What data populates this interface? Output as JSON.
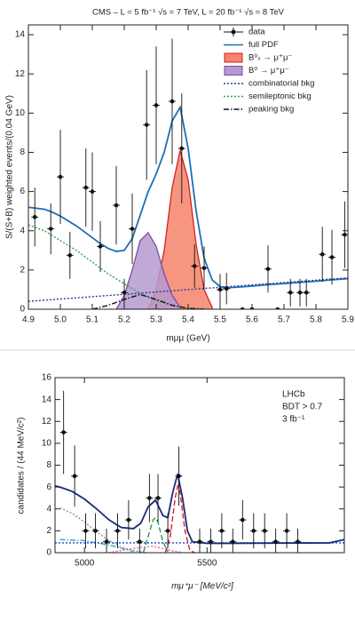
{
  "chart_data": [
    {
      "type": "line",
      "title": "CMS – L = 5 fb⁻¹ √s = 7 TeV, L = 20 fb⁻¹ √s = 8 TeV",
      "x_label": "mμμ (GeV)",
      "y_label": "S/(S+B) weighted events/(0.04 GeV)",
      "xlim": [
        4.9,
        5.9
      ],
      "xticks": [
        4.9,
        {
          "value": 5,
          "label": "5.0"
        },
        5.1,
        5.2,
        5.3,
        5.4,
        5.5,
        5.6,
        5.7,
        5.8,
        5.9
      ],
      "ylim": [
        0,
        14.5
      ],
      "yticks": [
        0,
        2,
        4,
        6,
        8,
        10,
        12,
        14
      ],
      "legend": "upper right",
      "series": [
        {
          "name": "data",
          "style": "points",
          "color": "#111111",
          "x": [
            4.92,
            4.97,
            5.0,
            5.03,
            5.08,
            5.1,
            5.125,
            5.175,
            5.2,
            5.225,
            5.27,
            5.3,
            5.35,
            5.38,
            5.42,
            5.45,
            5.5,
            5.52,
            5.57,
            5.6,
            5.65,
            5.68,
            5.72,
            5.75,
            5.77,
            5.82,
            5.85,
            5.89
          ],
          "values": [
            4.7,
            4.1,
            6.75,
            2.75,
            6.2,
            6.0,
            3.2,
            5.3,
            0.85,
            4.1,
            9.4,
            10.4,
            10.6,
            8.2,
            2.2,
            2.1,
            1.0,
            1.05,
            0,
            0,
            2.05,
            0,
            0.85,
            0.85,
            0.85,
            2.8,
            2.65,
            3.8
          ],
          "errors": [
            1.5,
            1.3,
            2.4,
            1.2,
            2.0,
            2.0,
            1.3,
            2.0,
            0.7,
            1.8,
            2.8,
            3.0,
            3.2,
            2.8,
            1.1,
            1.1,
            0.8,
            0.8,
            0,
            0,
            1.2,
            0,
            0.7,
            0.7,
            0.7,
            1.4,
            1.4,
            1.7
          ]
        },
        {
          "name": "full PDF",
          "style": "solid",
          "color": "#1f6fb5",
          "x": [
            4.9,
            4.925,
            4.95,
            4.975,
            5.0,
            5.025,
            5.05,
            5.075,
            5.1,
            5.125,
            5.15,
            5.175,
            5.2,
            5.225,
            5.25,
            5.275,
            5.3,
            5.325,
            5.35,
            5.375,
            5.4,
            5.425,
            5.45,
            5.475,
            5.5,
            5.525,
            5.55,
            5.575,
            5.6,
            5.625,
            5.65,
            5.675,
            5.7,
            5.725,
            5.75,
            5.775,
            5.8,
            5.825,
            5.85,
            5.875,
            5.9
          ],
          "values": [
            5.2,
            5.15,
            5.1,
            4.95,
            4.75,
            4.5,
            4.25,
            3.95,
            3.65,
            3.35,
            3.1,
            2.95,
            3.0,
            3.6,
            4.8,
            6.0,
            6.9,
            8.0,
            9.6,
            10.3,
            8.2,
            5.0,
            2.6,
            1.5,
            1.15,
            1.1,
            1.12,
            1.15,
            1.18,
            1.22,
            1.25,
            1.28,
            1.31,
            1.34,
            1.37,
            1.4,
            1.43,
            1.46,
            1.5,
            1.53,
            1.56
          ]
        },
        {
          "name": "B⁰ₛ → μ⁺μ⁻",
          "style": "area",
          "color": "#d42020",
          "fill": "#f4846a",
          "x": [
            5.275,
            5.3,
            5.325,
            5.35,
            5.375,
            5.4,
            5.425,
            5.45,
            5.475
          ],
          "values": [
            0,
            1.0,
            3.0,
            6.2,
            8.1,
            6.6,
            3.3,
            1.0,
            0.1
          ]
        },
        {
          "name": "B⁰ → μ⁺μ⁻",
          "style": "area",
          "color": "#7a4da0",
          "fill": "#b59ad0",
          "x": [
            5.175,
            5.2,
            5.225,
            5.25,
            5.275,
            5.3,
            5.325,
            5.35,
            5.375
          ],
          "values": [
            0,
            0.7,
            2.0,
            3.5,
            3.9,
            3.2,
            1.8,
            0.7,
            0.1
          ]
        },
        {
          "name": "combinatorial bkg",
          "style": "dotted",
          "color": "#2a3a9a",
          "x": [
            4.9,
            5.9
          ],
          "values": [
            0.4,
            1.6
          ]
        },
        {
          "name": "semileptonic bkg",
          "style": "dotted",
          "color": "#2aa84a",
          "x": [
            4.9,
            4.95,
            5.0,
            5.05,
            5.1,
            5.15,
            5.2,
            5.25,
            5.3,
            5.35,
            5.4,
            5.45
          ],
          "values": [
            4.3,
            4.0,
            3.5,
            3.0,
            2.4,
            1.8,
            1.3,
            0.8,
            0.45,
            0.2,
            0.05,
            0
          ]
        },
        {
          "name": "peaking bkg",
          "style": "dashdot",
          "color": "#111111",
          "x": [
            5.1,
            5.15,
            5.2,
            5.25,
            5.3,
            5.35,
            5.4,
            5.45
          ],
          "values": [
            0,
            0.2,
            0.5,
            0.75,
            0.5,
            0.2,
            0.05,
            0
          ]
        }
      ]
    },
    {
      "type": "line",
      "x_label": "mμ⁺μ⁻ [MeV/c²]",
      "y_label": "candidates / (44 MeV/c²)",
      "annotations": [
        "LHCb",
        "BDT > 0.7",
        "3 fb⁻¹"
      ],
      "xlim": [
        4880,
        6060
      ],
      "xticks": [
        5000,
        5500
      ],
      "ylim": [
        0,
        16
      ],
      "yticks": [
        0,
        2,
        4,
        6,
        8,
        10,
        12,
        14,
        16
      ],
      "series": [
        {
          "style": "dotted",
          "color": "#909090",
          "x": [
            4900,
            4950,
            5000,
            5050,
            5100,
            5150,
            5200,
            5250
          ],
          "values": [
            4.1,
            3.6,
            2.8,
            1.9,
            1.1,
            0.5,
            0.2,
            0
          ]
        },
        {
          "style": "dashdot",
          "color": "#30b0d0",
          "x": [
            4900,
            5000,
            5100,
            5150,
            5200
          ],
          "values": [
            1.2,
            1.1,
            0.7,
            0.4,
            0.1
          ]
        },
        {
          "style": "dotted",
          "color": "#e060c0",
          "x": [
            5100,
            5200,
            5280,
            5350,
            5400
          ],
          "values": [
            0,
            0.4,
            0.6,
            0.2,
            0
          ]
        },
        {
          "style": "dotted",
          "color": "#2040c0",
          "x": [
            4880,
            6060
          ],
          "values": [
            0.9,
            0.9
          ]
        },
        {
          "style": "dashed",
          "color": "#20a040",
          "x": [
            5240,
            5260,
            5280,
            5290,
            5300,
            5320,
            5340
          ],
          "values": [
            0,
            1.5,
            3.0,
            3.2,
            2.8,
            1.0,
            0.1
          ]
        },
        {
          "style": "dashed",
          "color": "#e02020",
          "x": [
            5330,
            5350,
            5370,
            5380,
            5390,
            5410,
            5430,
            5450
          ],
          "values": [
            0,
            1.5,
            5.0,
            6.1,
            5.5,
            2.0,
            0.2,
            0
          ]
        },
        {
          "style": "solid",
          "color": "#1a2a7a",
          "x": [
            4880,
            4900,
            4950,
            5000,
            5050,
            5100,
            5150,
            5200,
            5230,
            5260,
            5290,
            5320,
            5340,
            5360,
            5380,
            5400,
            5420,
            5440,
            5500,
            6000,
            6060
          ],
          "values": [
            6.1,
            6.0,
            5.6,
            4.9,
            4.0,
            3.0,
            2.3,
            2.2,
            2.7,
            4.2,
            4.8,
            3.4,
            3.2,
            5.5,
            7.2,
            5.0,
            2.0,
            1.0,
            0.85,
            0.9,
            1.2
          ]
        },
        {
          "style": "points",
          "color": "#111111",
          "x": [
            4915,
            4960,
            5005,
            5045,
            5090,
            5135,
            5180,
            5225,
            5265,
            5300,
            5340,
            5385,
            5470,
            5515,
            5560,
            5605,
            5645,
            5690,
            5735,
            5780,
            5825,
            5870
          ],
          "values": [
            11,
            7,
            2,
            2,
            1,
            2,
            3,
            1,
            5,
            5,
            2,
            7,
            1,
            1,
            2,
            1,
            3,
            2,
            2,
            1,
            2,
            1
          ],
          "errors": [
            3.8,
            2.8,
            1.6,
            1.6,
            1.2,
            1.6,
            1.8,
            1.2,
            2.2,
            2.2,
            1.6,
            2.7,
            1.2,
            1.2,
            1.6,
            1.2,
            1.8,
            1.6,
            1.6,
            1.2,
            1.6,
            1.2
          ]
        }
      ]
    }
  ]
}
